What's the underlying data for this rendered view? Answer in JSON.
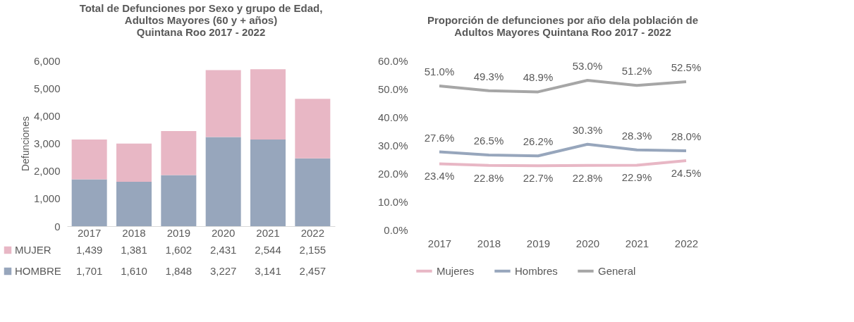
{
  "chart_data": [
    {
      "type": "bar",
      "title": "Total de Defunciones por Sexo y grupo de Edad,\nAdultos Mayores (60 y + años)\nQuintana Roo 2017 - 2022",
      "ylabel": "Defunciones",
      "categories": [
        "2017",
        "2018",
        "2019",
        "2020",
        "2021",
        "2022"
      ],
      "stacked": true,
      "legend": "bottom",
      "ylim": [
        0,
        6000
      ],
      "yticks": [
        0,
        {
          "value": 1000,
          "label": "1,000"
        },
        {
          "value": 2000,
          "label": "2,000"
        },
        {
          "value": 3000,
          "label": "3,000"
        },
        {
          "value": 4000,
          "label": "4,000"
        },
        {
          "value": 5000,
          "label": "5,000"
        },
        {
          "value": 6000,
          "label": "6,000"
        }
      ],
      "series": [
        {
          "name": "HOMBRE",
          "color": "#97a6bc",
          "values": [
            1701,
            1610,
            1848,
            3227,
            3141,
            2457
          ],
          "value_labels": [
            "1,701",
            "1,610",
            "1,848",
            "3,227",
            "3,141",
            "2,457"
          ]
        },
        {
          "name": "MUJER",
          "color": "#e8b7c5",
          "values": [
            1439,
            1381,
            1602,
            2431,
            2544,
            2155
          ],
          "value_labels": [
            "1,439",
            "1,381",
            "1,602",
            "2,431",
            "2,544",
            "2,155"
          ]
        }
      ]
    },
    {
      "type": "line",
      "title": "Proporción de defunciones por año dela población de\nAdultos Mayores Quintana Roo 2017 - 2022",
      "categories": [
        "2017",
        "2018",
        "2019",
        "2020",
        "2021",
        "2022"
      ],
      "legend": "bottom",
      "ylim": [
        0,
        60
      ],
      "yticks": [
        {
          "value": 0,
          "label": "0.0%"
        },
        {
          "value": 10,
          "label": "10.0%"
        },
        {
          "value": 20,
          "label": "20.0%"
        },
        {
          "value": 30,
          "label": "30.0%"
        },
        {
          "value": 40,
          "label": "40.0%"
        },
        {
          "value": 50,
          "label": "50.0%"
        },
        {
          "value": 60,
          "label": "60.0%"
        }
      ],
      "series": [
        {
          "name": "Mujeres",
          "color": "#e8b7c5",
          "values": [
            23.4,
            22.8,
            22.7,
            22.8,
            22.9,
            24.5
          ],
          "value_labels": [
            "23.4%",
            "22.8%",
            "22.7%",
            "22.8%",
            "22.9%",
            "24.5%"
          ]
        },
        {
          "name": "Hombres",
          "color": "#97a6bc",
          "values": [
            27.6,
            26.5,
            26.2,
            30.3,
            28.3,
            28.0
          ],
          "value_labels": [
            "27.6%",
            "26.5%",
            "26.2%",
            "30.3%",
            "28.3%",
            "28.0%"
          ]
        },
        {
          "name": "General",
          "color": "#a6a6a6",
          "values": [
            51.0,
            49.3,
            48.9,
            53.0,
            51.2,
            52.5
          ],
          "value_labels": [
            "51.0%",
            "49.3%",
            "48.9%",
            "53.0%",
            "51.2%",
            "52.5%"
          ]
        }
      ]
    }
  ]
}
